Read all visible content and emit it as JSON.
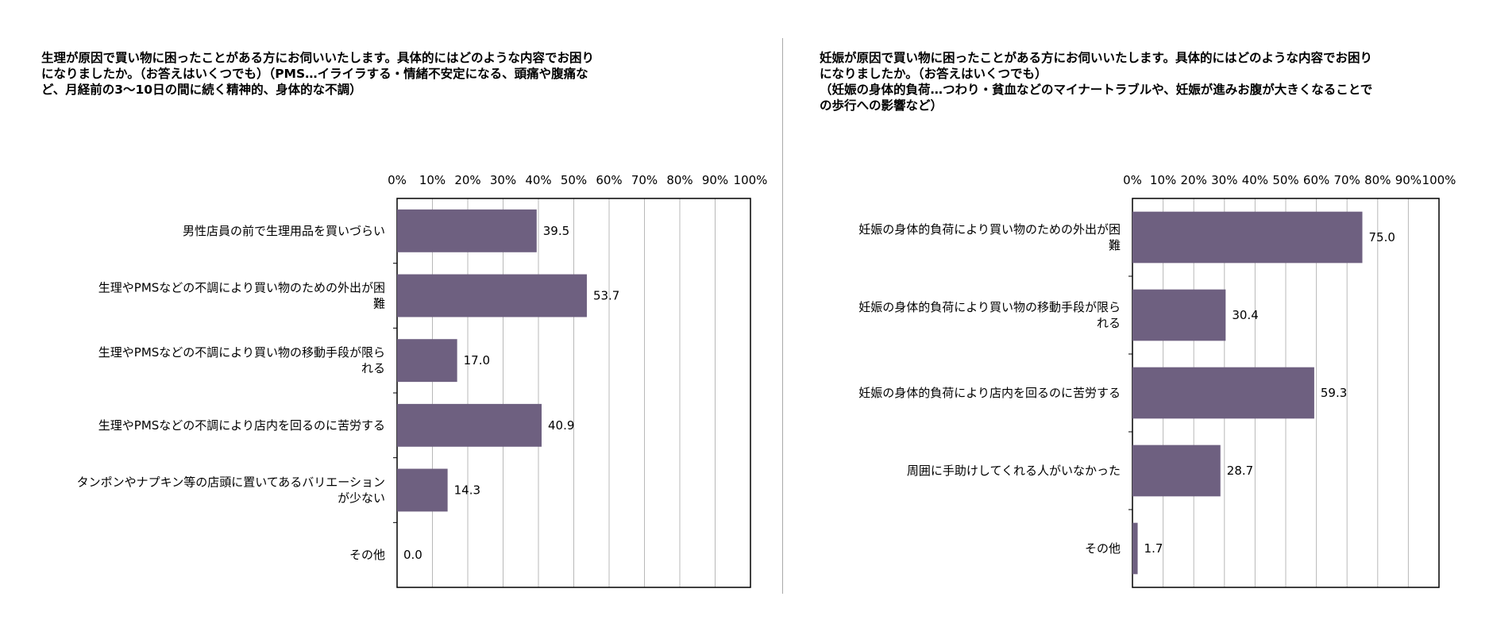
{
  "colors": {
    "bar": "#6e6080",
    "grid": "#b8b8b8",
    "axis": "#000000"
  },
  "chart_data": [
    {
      "type": "bar",
      "orientation": "horizontal",
      "title": "生理が原因で買い物に困ったことがある方にお伺いいたします。具体的にはどのような内容でお困り\nになりましたか。（お答えはいくつでも）（PMS…イライラする・情緒不安定になる、頭痛や腹痛な\nど、月経前の3〜10日の間に続く精神的、身体的な不調）",
      "categories": [
        [
          "男性店員の前で生理用品を買いづらい"
        ],
        [
          "生理やPMSなどの不調により買い物のための外出が困",
          "難"
        ],
        [
          "生理やPMSなどの不調により買い物の移動手段が限ら",
          "れる"
        ],
        [
          "生理やPMSなどの不調により店内を回るのに苦労する"
        ],
        [
          "タンポンやナプキン等の店頭に置いてあるバリエーション",
          "が少ない"
        ],
        [
          "その他"
        ]
      ],
      "values": [
        39.5,
        53.7,
        17.0,
        40.9,
        14.3,
        0.0
      ],
      "value_labels": [
        "39.5",
        "53.7",
        "17.0",
        "40.9",
        "14.3",
        "0.0"
      ],
      "ticks": [
        "0%",
        "10%",
        "20%",
        "30%",
        "40%",
        "50%",
        "60%",
        "70%",
        "80%",
        "90%",
        "100%"
      ],
      "xlim": [
        0,
        100
      ],
      "grid": true,
      "axis_position": "top"
    },
    {
      "type": "bar",
      "orientation": "horizontal",
      "title": "妊娠が原因で買い物に困ったことがある方にお伺いいたします。具体的にはどのような内容でお困り\nになりましたか。（お答えはいくつでも）\n（妊娠の身体的負荷…つわり・貧血などのマイナートラブルや、妊娠が進みお腹が大きくなることで\nの歩行への影響など）",
      "categories": [
        [
          "妊娠の身体的負荷により買い物のための外出が困",
          "難"
        ],
        [
          "妊娠の身体的負荷により買い物の移動手段が限ら",
          "れる"
        ],
        [
          "妊娠の身体的負荷により店内を回るのに苦労する"
        ],
        [
          "周囲に手助けしてくれる人がいなかった"
        ],
        [
          "その他"
        ]
      ],
      "values": [
        75.0,
        30.4,
        59.3,
        28.7,
        1.7
      ],
      "value_labels": [
        "75.0",
        "30.4",
        "59.3",
        "28.7",
        "1.7"
      ],
      "ticks": [
        "0%",
        "10%",
        "20%",
        "30%",
        "40%",
        "50%",
        "60%",
        "70%",
        "80%",
        "90%",
        "100%"
      ],
      "xlim": [
        0,
        100
      ],
      "grid": true,
      "axis_position": "top"
    }
  ]
}
